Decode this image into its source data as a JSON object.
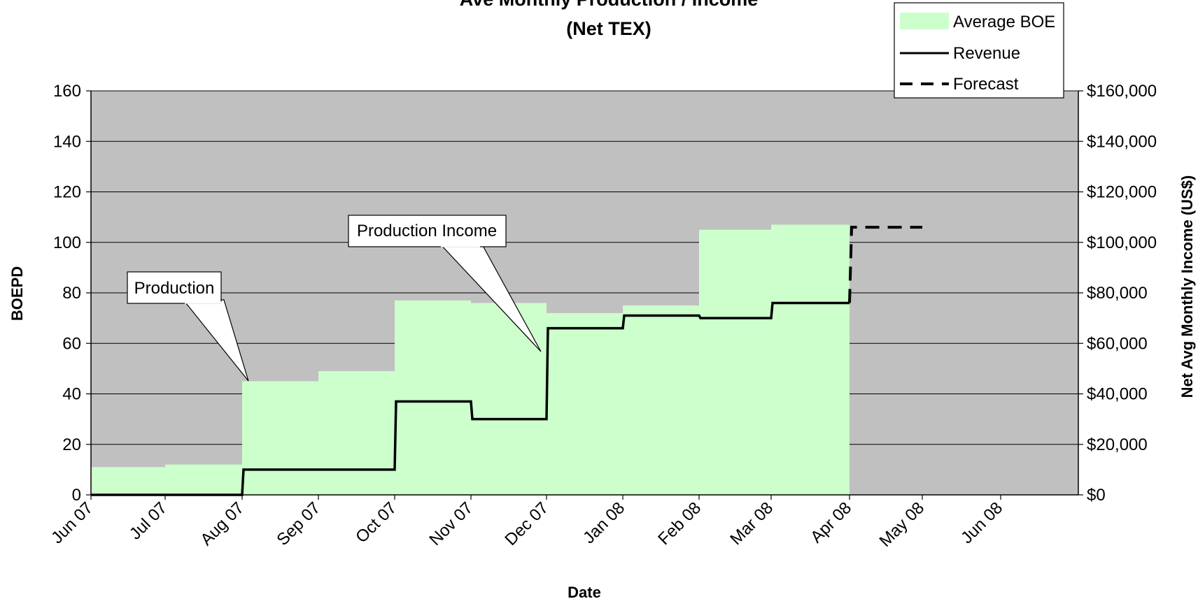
{
  "chart_data": {
    "type": "area",
    "title": [
      "Ave Monthly Production / Income",
      "(Net TEX)"
    ],
    "xlabel": "Date",
    "ylabel_left": "BOEPD",
    "ylabel_right": "Net Avg Monthly Income (US$)",
    "x_ticks": [
      "Jun 07",
      "Jul 07",
      "Aug 07",
      "Sep 07",
      "Oct 07",
      "Nov 07",
      "Dec 07",
      "Jan 08",
      "Feb 08",
      "Mar 08",
      "Apr 08",
      "May 08",
      "Jun 08"
    ],
    "ylim_left": [
      0,
      160
    ],
    "yticks_left": [
      "0",
      "20",
      "40",
      "60",
      "80",
      "100",
      "120",
      "140",
      "160"
    ],
    "ylim_right": [
      0,
      160000
    ],
    "yticks_right": [
      "$0",
      "$20,000",
      "$40,000",
      "$60,000",
      "$80,000",
      "$100,000",
      "$120,000",
      "$140,000",
      "$160,000"
    ],
    "grid": true,
    "legend_position": "top-right",
    "colors": {
      "plot_bg": "#c0c0c0",
      "area": "#ccffcc",
      "line": "#000000"
    },
    "series": [
      {
        "name": "Average BOE",
        "kind": "area-step",
        "months": [
          "Jun 07",
          "Jul 07",
          "Aug 07",
          "Sep 07",
          "Oct 07",
          "Nov 07",
          "Dec 07",
          "Jan 08",
          "Feb 08",
          "Mar 08"
        ],
        "values": [
          11,
          12,
          45,
          49,
          77,
          76,
          72,
          75,
          105,
          107
        ]
      },
      {
        "name": "Revenue",
        "kind": "line-step",
        "months": [
          "Jun 07",
          "Jul 07",
          "Aug 07",
          "Sep 07",
          "Oct 07",
          "Nov 07",
          "Dec 07",
          "Jan 08",
          "Feb 08",
          "Mar 08"
        ],
        "values": [
          0,
          0,
          10000,
          10000,
          37000,
          30000,
          66000,
          71000,
          70000,
          76000
        ]
      },
      {
        "name": "Forecast",
        "kind": "dashed",
        "months": [
          "Apr 08"
        ],
        "values": [
          106000
        ]
      }
    ],
    "annotations": [
      "Production",
      "Production Income"
    ]
  }
}
